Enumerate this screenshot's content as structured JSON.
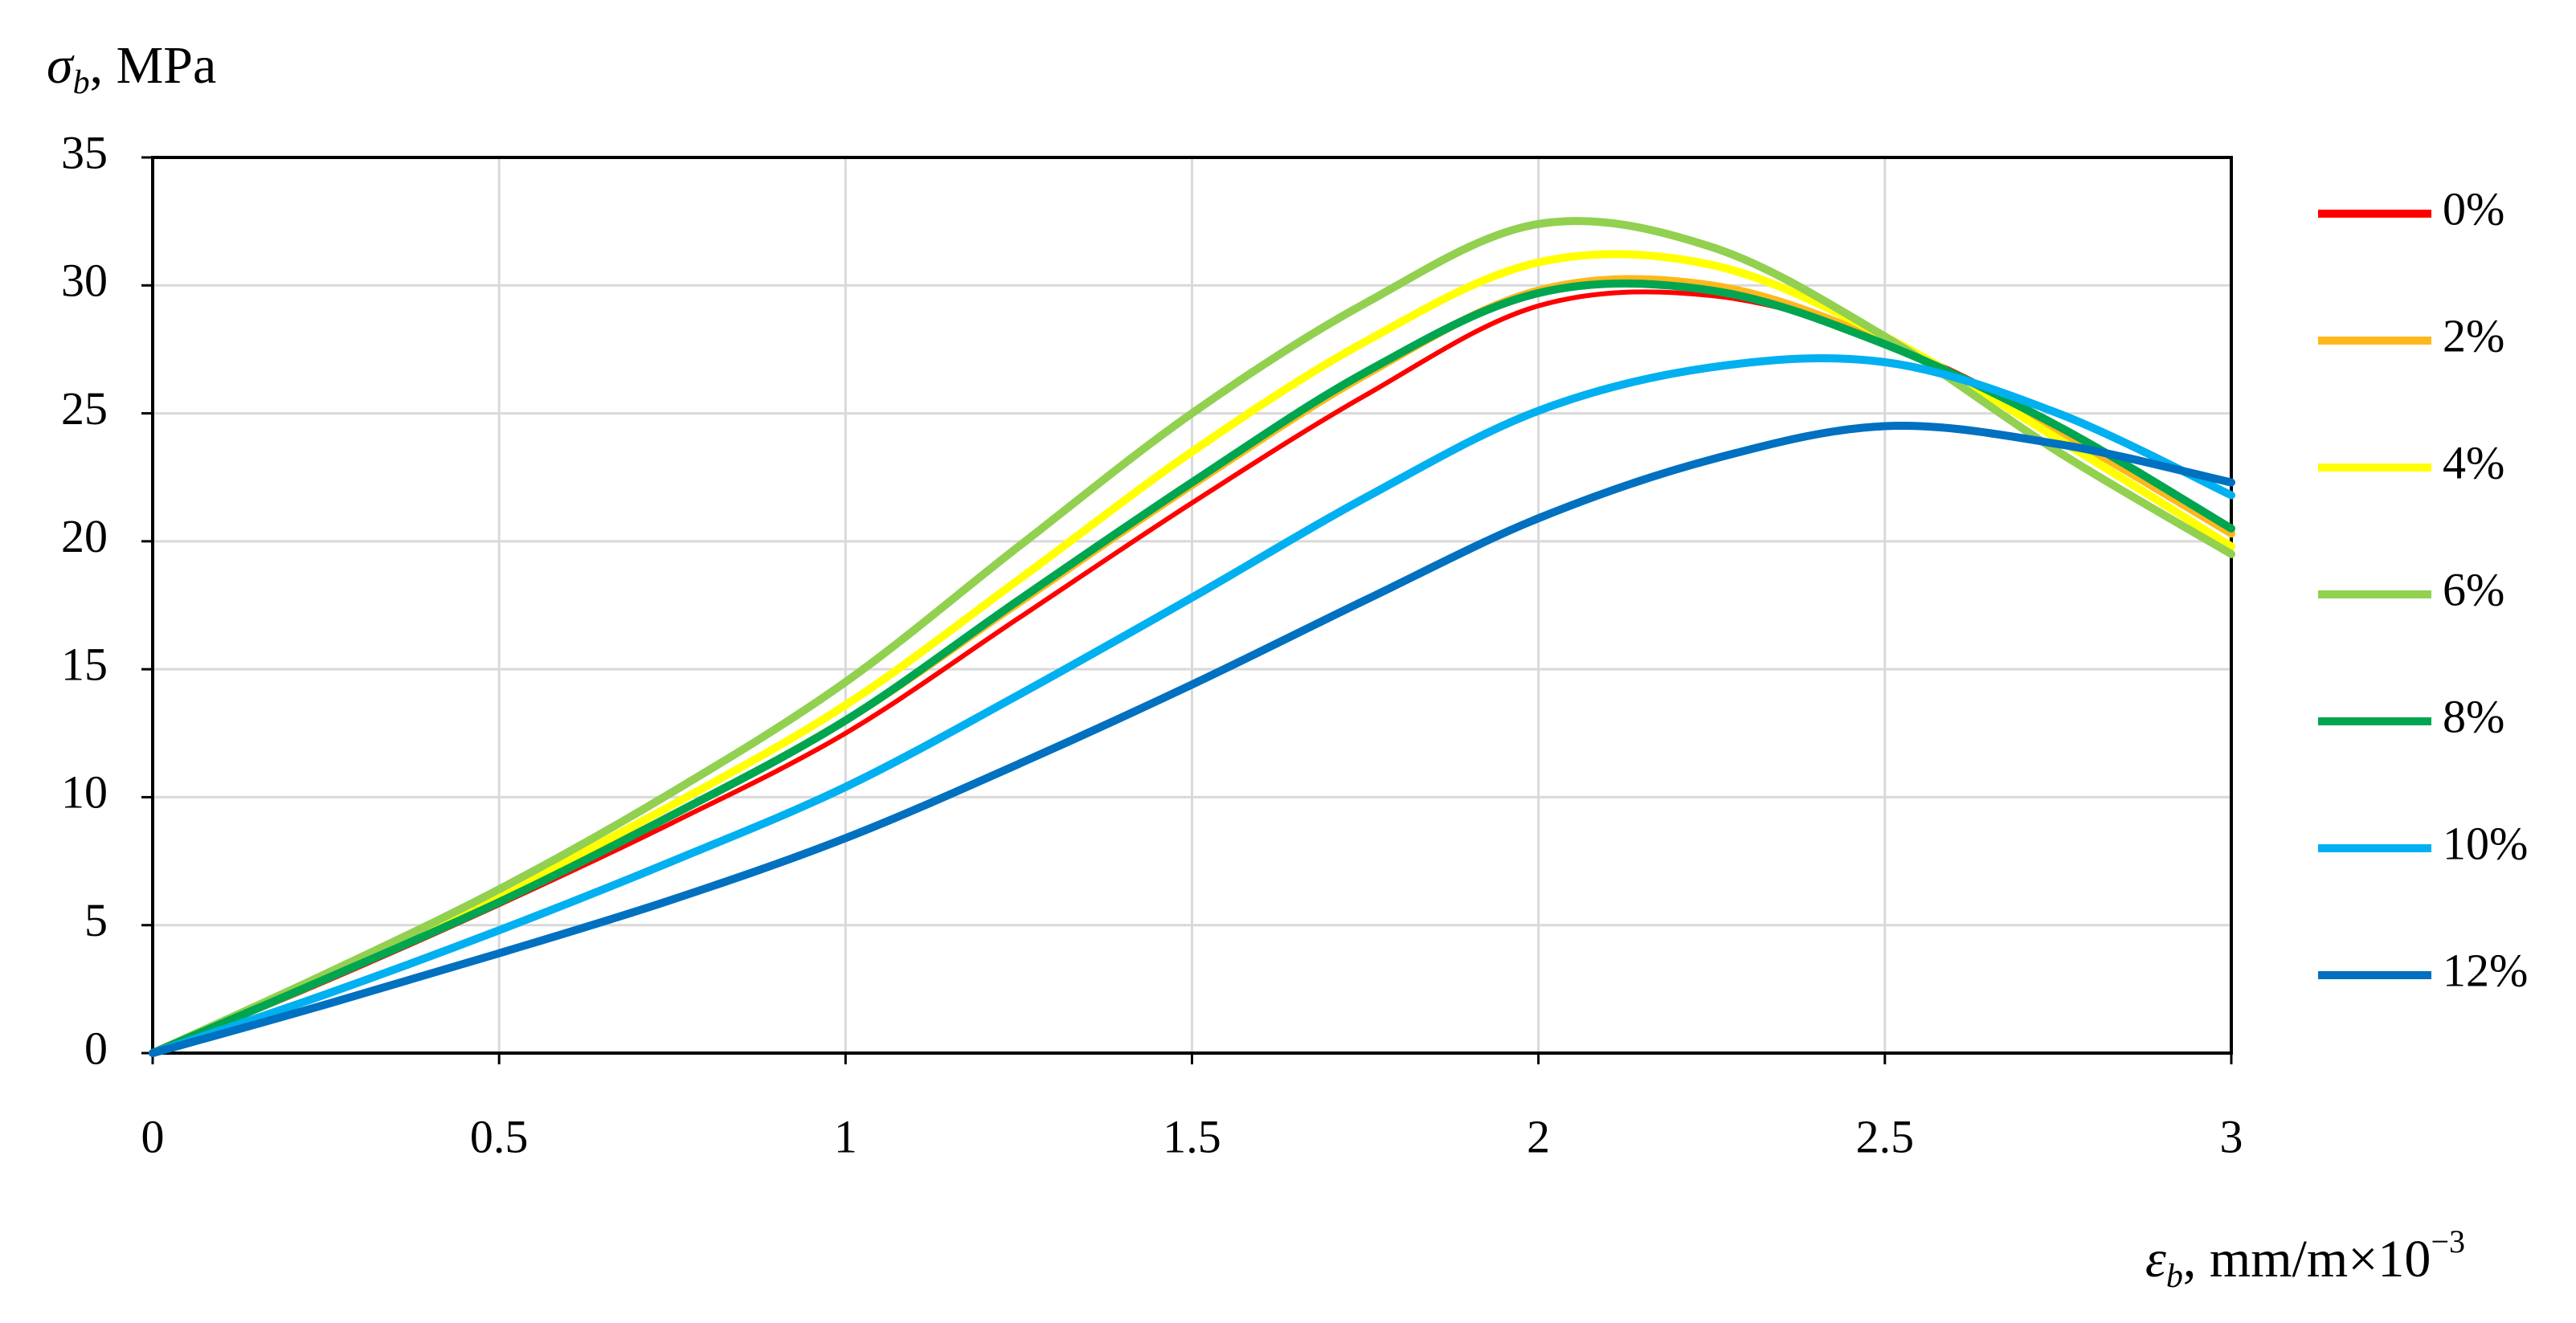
{
  "chart_data": {
    "type": "line",
    "ylabel": {
      "symbol": "σ",
      "sub": "b",
      "unit": ", MPa"
    },
    "xlabel": {
      "symbol": "ε",
      "sub": "b",
      "unit": ", mm/m×10",
      "sup": "−3"
    },
    "x": [
      0,
      0.25,
      0.5,
      0.75,
      1,
      1.25,
      1.5,
      1.75,
      2,
      2.25,
      2.5,
      2.75,
      3
    ],
    "series": [
      {
        "name": "0%",
        "color": "#ff0000",
        "values": [
          0,
          2.8,
          5.8,
          9.0,
          12.5,
          17.0,
          21.5,
          25.7,
          29.2,
          29.6,
          27.8,
          24.5,
          20.3
        ]
      },
      {
        "name": "2%",
        "color": "#ffb81c",
        "values": [
          0,
          2.9,
          6.0,
          9.3,
          13.0,
          17.6,
          22.2,
          26.5,
          29.8,
          30.0,
          27.8,
          24.3,
          20.3
        ]
      },
      {
        "name": "4%",
        "color": "#ffff00",
        "values": [
          0,
          3.0,
          6.2,
          9.7,
          13.6,
          18.5,
          23.5,
          27.8,
          30.9,
          30.8,
          28.0,
          24.0,
          19.8
        ]
      },
      {
        "name": "6%",
        "color": "#92d050",
        "values": [
          0,
          3.1,
          6.4,
          10.2,
          14.5,
          19.8,
          25.0,
          29.3,
          32.4,
          31.5,
          28.0,
          23.5,
          19.5
        ]
      },
      {
        "name": "8%",
        "color": "#00a550",
        "values": [
          0,
          2.9,
          5.9,
          9.3,
          13.0,
          17.7,
          22.3,
          26.6,
          29.7,
          29.8,
          27.7,
          24.5,
          20.5
        ]
      },
      {
        "name": "10%",
        "color": "#00b0f0",
        "values": [
          0,
          2.3,
          4.8,
          7.5,
          10.4,
          14.0,
          17.8,
          21.7,
          25.1,
          26.8,
          27.0,
          25.0,
          21.8
        ]
      },
      {
        "name": "12%",
        "color": "#0070c0",
        "values": [
          0,
          1.9,
          3.9,
          6.0,
          8.4,
          11.3,
          14.4,
          17.7,
          20.9,
          23.2,
          24.5,
          23.8,
          22.3
        ]
      }
    ],
    "xlim": [
      0,
      3
    ],
    "xticks": [
      0,
      0.5,
      1,
      1.5,
      2,
      2.5,
      3
    ],
    "ylim": [
      0,
      35
    ],
    "yticks": [
      0,
      5,
      10,
      15,
      20,
      25,
      30,
      35
    ],
    "grid": true,
    "legend": "right"
  }
}
